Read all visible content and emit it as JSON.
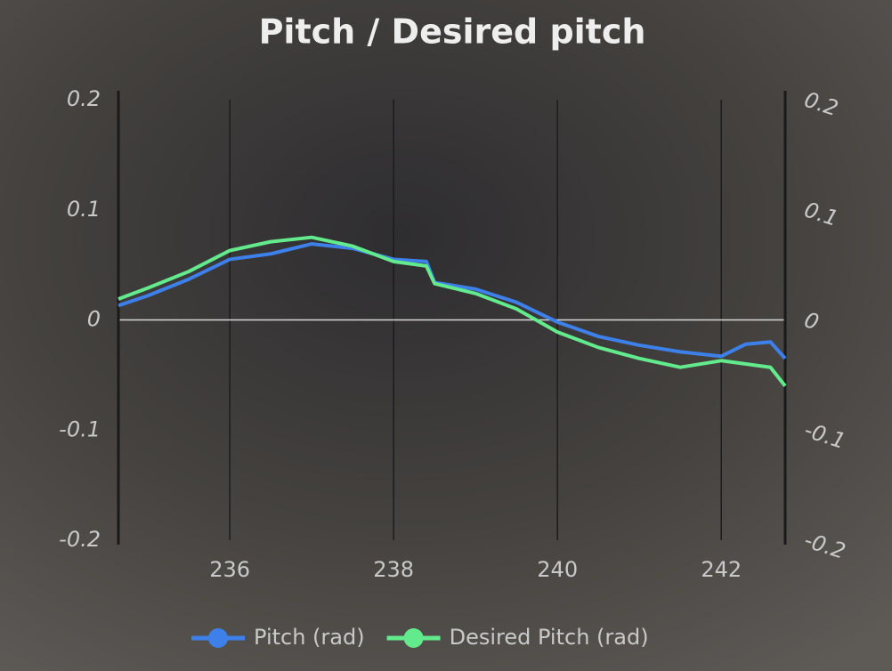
{
  "chart_data": {
    "type": "line",
    "title": "Pitch / Desired pitch",
    "x": [
      234.64,
      235.0,
      235.5,
      236.0,
      236.5,
      237.0,
      237.5,
      238.0,
      238.4,
      238.5,
      239.0,
      239.5,
      240.0,
      240.5,
      241.0,
      241.5,
      242.0,
      242.3,
      242.6,
      242.78
    ],
    "series": [
      {
        "name": "Pitch (rad)",
        "color": "#3d80ea",
        "values": [
          0.013,
          0.022,
          0.037,
          0.055,
          0.06,
          0.069,
          0.065,
          0.055,
          0.053,
          0.034,
          0.028,
          0.016,
          -0.002,
          -0.015,
          -0.023,
          -0.029,
          -0.033,
          -0.022,
          -0.02,
          -0.035
        ]
      },
      {
        "name": "Desired Pitch (rad)",
        "color": "#62ea8c",
        "values": [
          0.019,
          0.029,
          0.044,
          0.063,
          0.071,
          0.075,
          0.067,
          0.053,
          0.049,
          0.033,
          0.024,
          0.01,
          -0.011,
          -0.025,
          -0.035,
          -0.043,
          -0.037,
          -0.04,
          -0.043,
          -0.06
        ]
      }
    ],
    "xlim": [
      234.64,
      242.78
    ],
    "xticks": [
      236,
      238,
      240,
      242
    ],
    "ylim": [
      -0.2,
      0.2
    ],
    "yticks": [
      -0.2,
      -0.1,
      0,
      0.1,
      0.2
    ],
    "y2lim": [
      -0.2,
      0.2
    ],
    "y2ticks": [
      -0.2,
      -0.1,
      0,
      0.1,
      0.2
    ],
    "grid": true,
    "legend": "bottom"
  }
}
